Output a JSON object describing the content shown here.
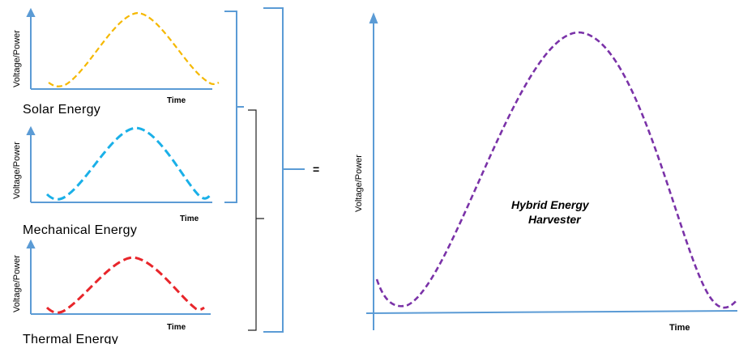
{
  "panels": [
    {
      "id": "solar",
      "caption": "Solar Energy",
      "ylabel": "Voltage/Power",
      "xlabel": "Time",
      "color": "#f5b800"
    },
    {
      "id": "mechanical",
      "caption": "Mechanical Energy",
      "ylabel": "Voltage/Power",
      "xlabel": "Time",
      "color": "#1ab0e8"
    },
    {
      "id": "thermal",
      "caption": "Thermal Energy",
      "ylabel": "Voltage/Power",
      "xlabel": "Time",
      "color": "#e8262b"
    }
  ],
  "equals": "=",
  "result": {
    "ylabel": "Voltage/Power",
    "xlabel": "Time",
    "title_line1": "Hybrid Energy",
    "title_line2": "Harvester",
    "color": "#7a32a8"
  },
  "colors": {
    "axis": "#5b9bd5",
    "bracket": "#5b9bd5",
    "inner_bracket": "#222222"
  }
}
